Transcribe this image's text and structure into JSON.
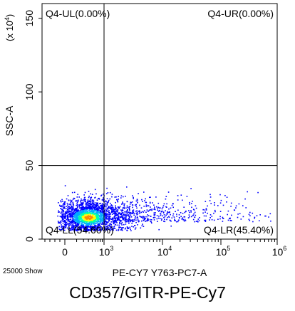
{
  "chart_data": {
    "type": "scatter",
    "title": "CD357/GITR-PE-Cy7",
    "event_count_label": "25000 Show",
    "xlabel": "PE-CY7 Y763-PC7-A",
    "ylabel": "SSC-A",
    "y_multiplier_label": "(x 10",
    "y_multiplier_exp": "4",
    "y_multiplier_close": ")",
    "x_scale": "log-like (biexponential)",
    "x_ticks": [
      {
        "pos": 0,
        "base": "0",
        "exp": ""
      },
      {
        "pos": 1,
        "base": "10",
        "exp": "3"
      },
      {
        "pos": 2,
        "base": "10",
        "exp": "4"
      },
      {
        "pos": 3,
        "base": "10",
        "exp": "5"
      },
      {
        "pos": 4,
        "base": "10",
        "exp": "6"
      }
    ],
    "ylim": [
      0,
      160
    ],
    "y_ticks": [
      "0",
      "50",
      "100",
      "150"
    ],
    "y_tick_values": [
      0,
      50,
      100,
      150
    ],
    "gate_x_decade": 1,
    "gate_y": 50,
    "quadrants": {
      "ul": "Q4-UL(0.00%)",
      "ur": "Q4-UR(0.00%)",
      "ll": "Q4-LL(54.60%)",
      "lr": "Q4-LR(45.40%)"
    },
    "grid": false,
    "density_colors": [
      "#0000ff",
      "#00aaff",
      "#00ffaa",
      "#ffff00",
      "#ff8800"
    ],
    "population": {
      "center_decade": 0.6,
      "center_y": 15,
      "spread_decade": 0.45,
      "spread_y": 6,
      "tail_to_decade": 3.4
    }
  }
}
